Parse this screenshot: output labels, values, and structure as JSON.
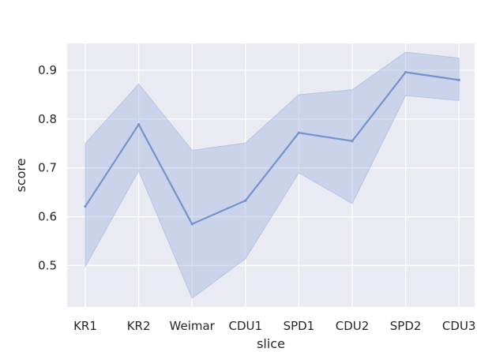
{
  "chart_data": {
    "type": "line",
    "xlabel": "slice",
    "ylabel": "score",
    "categories": [
      "KR1",
      "KR2",
      "Weimar",
      "CDU1",
      "SPD1",
      "CDU2",
      "SPD2",
      "CDU3"
    ],
    "series": [
      {
        "values": [
          0.621,
          0.789,
          0.585,
          0.633,
          0.772,
          0.755,
          0.896,
          0.88
        ],
        "ci_lower": [
          0.498,
          0.694,
          0.433,
          0.514,
          0.69,
          0.627,
          0.848,
          0.838
        ],
        "ci_upper": [
          0.75,
          0.872,
          0.736,
          0.751,
          0.85,
          0.86,
          0.937,
          0.925
        ]
      }
    ],
    "ylim": [
      0.415,
      0.955
    ],
    "yticks": [
      0.5,
      0.6,
      0.7,
      0.8,
      0.9
    ],
    "grid": true,
    "background": "#EAEAF2",
    "line_color": "#7293CB",
    "band_color": "#A7B9DF"
  }
}
